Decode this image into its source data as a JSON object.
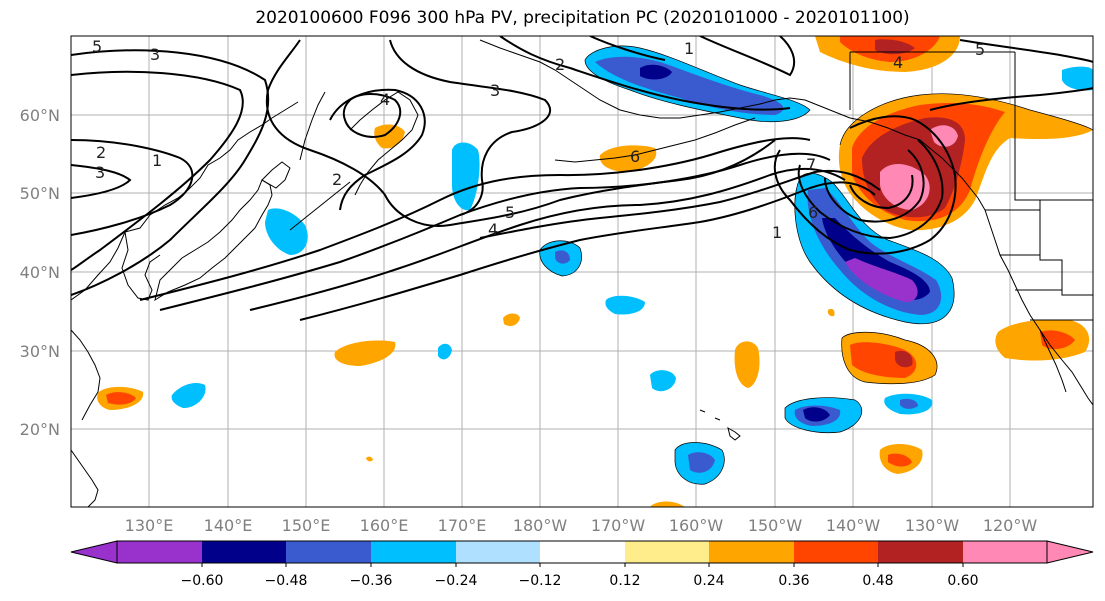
{
  "title": "2020100600 F096 300 hPa PV, precipitation PC (2020101000 - 2020101100)",
  "map": {
    "lat_labels": [
      "60°N",
      "50°N",
      "40°N",
      "30°N",
      "20°N"
    ],
    "lon_labels": [
      "130°E",
      "140°E",
      "150°E",
      "160°E",
      "170°E",
      "180°W",
      "170°W",
      "160°W",
      "150°W",
      "140°W",
      "130°W",
      "120°W"
    ],
    "contour_labels": [
      "5",
      "3",
      "1",
      "2",
      "3",
      "4",
      "2",
      "3",
      "2",
      "1",
      "5",
      "4",
      "6",
      "1",
      "7",
      "6",
      "4",
      "5"
    ],
    "colors": {
      "neg_060": "#9932cc",
      "neg_048": "#00008b",
      "neg_036": "#3a5bd0",
      "neg_024": "#00bfff",
      "neg_012": "#b0e0ff",
      "pos_012": "#ffec8b",
      "pos_024": "#ffa500",
      "pos_036": "#ff4500",
      "pos_048": "#b22222",
      "pos_060": "#ff88b4"
    }
  },
  "colorbar": {
    "colors": [
      "#9932cc",
      "#00008b",
      "#3a5bd0",
      "#00bfff",
      "#b0e0ff",
      "#ffffff",
      "#ffec8b",
      "#ffa500",
      "#ff4500",
      "#b22222",
      "#ff88b4"
    ],
    "tick_labels": [
      "−0.60",
      "−0.48",
      "−0.36",
      "−0.24",
      "−0.12",
      "0.12",
      "0.24",
      "0.36",
      "0.48",
      "0.60"
    ]
  }
}
